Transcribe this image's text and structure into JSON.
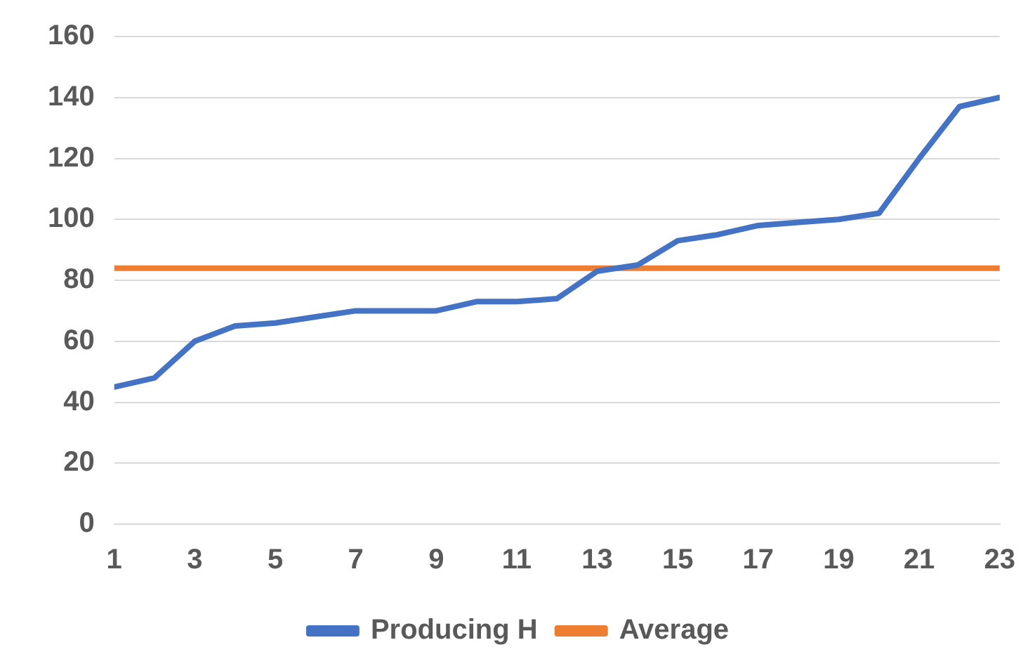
{
  "chart_data": {
    "type": "line",
    "x": [
      1,
      2,
      3,
      4,
      5,
      6,
      7,
      8,
      9,
      10,
      11,
      12,
      13,
      14,
      15,
      16,
      17,
      18,
      19,
      20,
      21,
      22,
      23
    ],
    "xlim": [
      1,
      23
    ],
    "xticks": [
      1,
      3,
      5,
      7,
      9,
      11,
      13,
      15,
      17,
      19,
      21,
      23
    ],
    "series": [
      {
        "name": "Producing H",
        "color": "#4472c4",
        "values": [
          45,
          48,
          60,
          65,
          66,
          68,
          70,
          70,
          70,
          73,
          73,
          74,
          83,
          85,
          93,
          95,
          98,
          99,
          100,
          102,
          120,
          137,
          140
        ]
      },
      {
        "name": "Average",
        "color": "#ed7d31",
        "values": [
          84,
          84,
          84,
          84,
          84,
          84,
          84,
          84,
          84,
          84,
          84,
          84,
          84,
          84,
          84,
          84,
          84,
          84,
          84,
          84,
          84,
          84,
          84
        ]
      }
    ],
    "ylim": [
      0,
      160
    ],
    "yticks": [
      0,
      20,
      40,
      60,
      80,
      100,
      120,
      140,
      160
    ],
    "grid": "y",
    "legend": "bottom",
    "marker": "none",
    "line_style": "solid"
  }
}
